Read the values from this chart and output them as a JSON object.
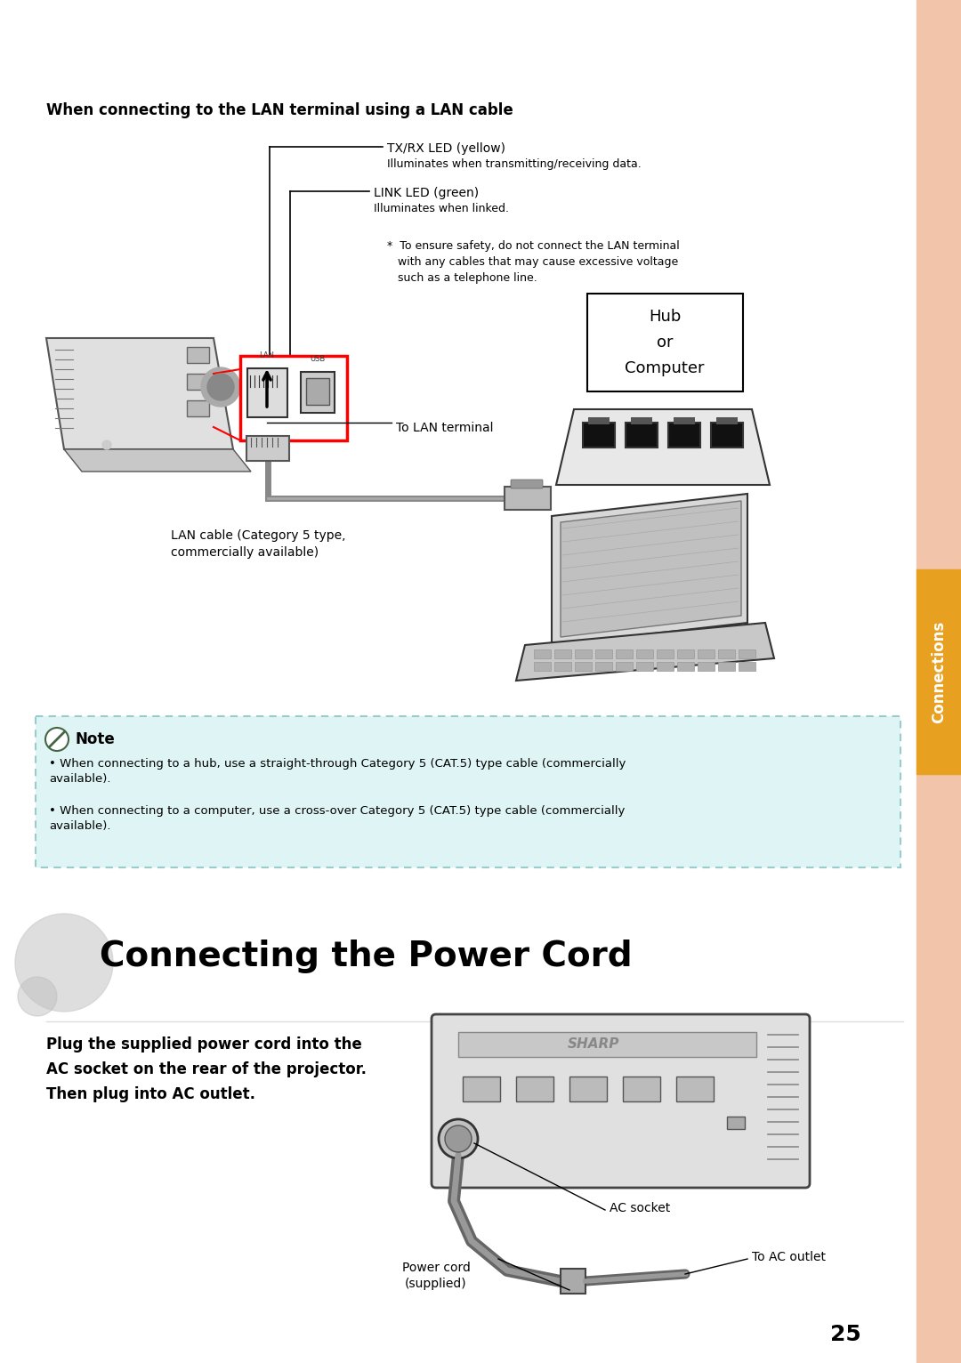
{
  "bg_color": "#ffffff",
  "sidebar_color": "#f2c4aa",
  "sidebar_gold_color": "#e8a020",
  "page_number": "25",
  "section_label": "Connections",
  "lan_section_title": "When connecting to the LAN terminal using a LAN cable",
  "txrx_label1": "TX/RX LED (yellow)",
  "txrx_label2": "Illuminates when transmitting/receiving data.",
  "link_label1": "LINK LED (green)",
  "link_label2": "Illuminates when linked.",
  "safety_note": "*  To ensure safety, do not connect the LAN terminal\n   with any cables that may cause excessive voltage\n   such as a telephone line.",
  "hub_box_text": "Hub\nor\nComputer",
  "to_lan_label": "To LAN terminal",
  "lan_cable_label": "LAN cable (Category 5 type,\ncommercially available)",
  "note_bg_color": "#dff4f4",
  "note_border_color": "#99cccc",
  "note_title": "Note",
  "note_bullet1": "When connecting to a hub, use a straight-through Category 5 (CAT.5) type cable (commercially\navailable).",
  "note_bullet2": "When connecting to a computer, use a cross-over Category 5 (CAT.5) type cable (commercially\navailable).",
  "power_section_title": "Connecting the Power Cord",
  "power_desc": "Plug the supplied power cord into the\nAC socket on the rear of the projector.\nThen plug into AC outlet.",
  "ac_socket_label": "AC socket",
  "power_cord_label": "Power cord\n(supplied)",
  "to_ac_outlet_label": "To AC outlet",
  "line_color": "#333333",
  "proj_body_color": "#e0e0e0",
  "proj_edge_color": "#555555"
}
